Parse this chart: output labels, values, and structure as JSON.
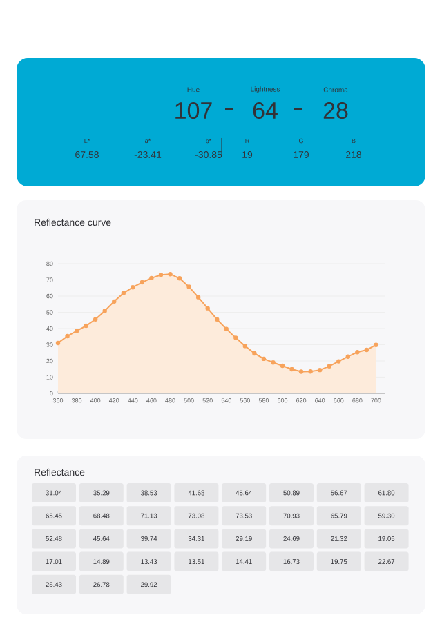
{
  "chart_data": {
    "type": "area",
    "title": "Reflectance curve",
    "x": [
      360,
      370,
      380,
      390,
      400,
      410,
      420,
      430,
      440,
      450,
      460,
      470,
      480,
      490,
      500,
      510,
      520,
      530,
      540,
      550,
      560,
      570,
      580,
      590,
      600,
      610,
      620,
      630,
      640,
      650,
      660,
      670,
      680,
      690,
      700
    ],
    "values": [
      31.04,
      35.29,
      38.53,
      41.68,
      45.64,
      50.89,
      56.67,
      61.8,
      65.45,
      68.48,
      71.13,
      73.08,
      73.53,
      70.93,
      65.79,
      59.3,
      52.48,
      45.64,
      39.74,
      34.31,
      29.19,
      24.69,
      21.32,
      19.05,
      17.01,
      14.89,
      13.43,
      13.51,
      14.41,
      16.73,
      19.75,
      22.67,
      25.43,
      26.78,
      29.92
    ],
    "color": "#f7a35c",
    "xlim": [
      360,
      710
    ],
    "ylim": [
      0,
      80
    ],
    "xticks": [
      360,
      380,
      400,
      420,
      440,
      460,
      480,
      500,
      520,
      540,
      560,
      580,
      600,
      620,
      640,
      660,
      680,
      700
    ],
    "yticks": [
      0,
      10,
      20,
      30,
      40,
      50,
      60,
      70,
      80
    ],
    "grid": "y",
    "marker": "circle",
    "annotations": [
      "Hue",
      "107",
      "Lightness",
      "64",
      "Chroma",
      "28",
      "L*",
      "67.58",
      "a*",
      "-23.41",
      "b*",
      "-30.85",
      "R",
      "19",
      "G",
      "179",
      "B",
      "218",
      "Reflectance",
      "31.04",
      "35.29",
      "38.53",
      "41.68",
      "45.64",
      "50.89",
      "56.67",
      "61.80",
      "65.45",
      "68.48",
      "71.13",
      "73.08",
      "73.53",
      "70.93",
      "65.79",
      "59.30",
      "52.48",
      "45.64",
      "39.74",
      "34.31",
      "29.19",
      "24.69",
      "21.32",
      "19.05",
      "17.01",
      "14.89",
      "13.43",
      "13.51",
      "14.41",
      "16.73",
      "19.75",
      "22.67",
      "25.43",
      "26.78",
      "29.92"
    ]
  }
}
